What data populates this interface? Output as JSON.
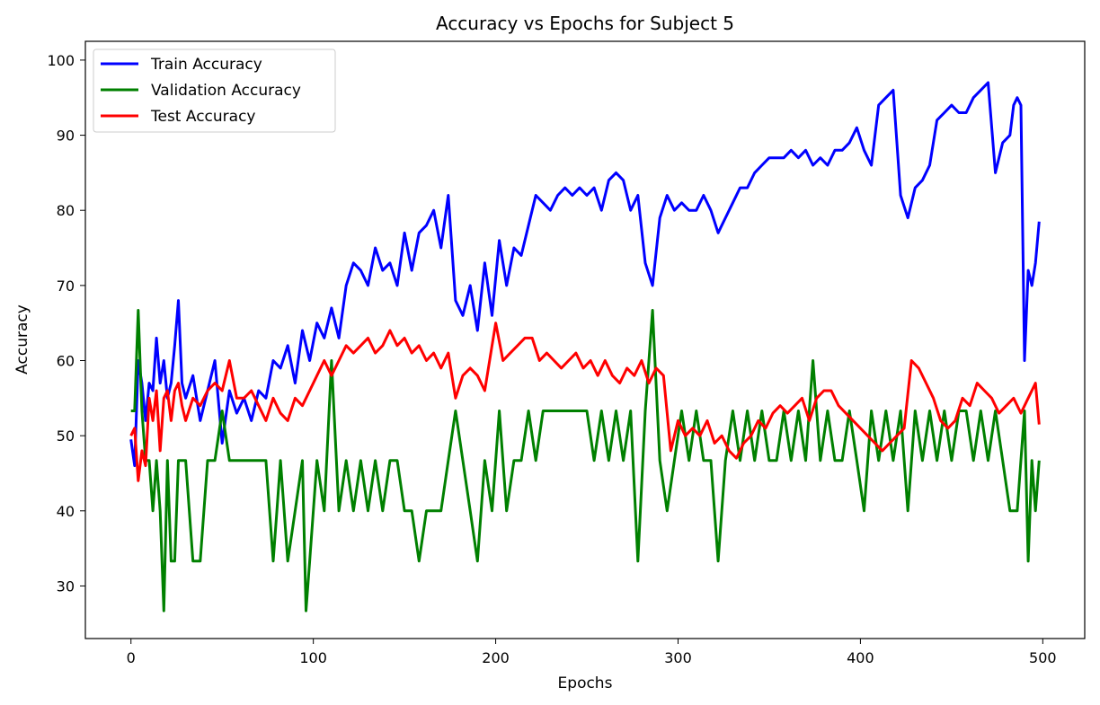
{
  "chart_data": {
    "type": "line",
    "title": "Accuracy vs Epochs for Subject 5",
    "xlabel": "Epochs",
    "ylabel": "Accuracy",
    "xlim": [
      -25,
      523
    ],
    "ylim": [
      23,
      102.5
    ],
    "xticks": [
      0,
      100,
      200,
      300,
      400,
      500
    ],
    "yticks": [
      30,
      40,
      50,
      60,
      70,
      80,
      90,
      100
    ],
    "grid": false,
    "legend_position": "top-left",
    "series": [
      {
        "name": "Train Accuracy",
        "color": "#0000ff",
        "x": [
          0,
          2,
          4,
          6,
          8,
          10,
          12,
          14,
          16,
          18,
          20,
          22,
          24,
          26,
          28,
          30,
          34,
          38,
          42,
          46,
          50,
          54,
          58,
          62,
          66,
          70,
          74,
          78,
          82,
          86,
          90,
          94,
          98,
          102,
          106,
          110,
          114,
          118,
          122,
          126,
          130,
          134,
          138,
          142,
          146,
          150,
          154,
          158,
          162,
          166,
          170,
          174,
          178,
          182,
          186,
          190,
          194,
          198,
          202,
          206,
          210,
          214,
          218,
          222,
          226,
          230,
          234,
          238,
          242,
          246,
          250,
          254,
          258,
          262,
          266,
          270,
          274,
          278,
          282,
          286,
          290,
          294,
          298,
          302,
          306,
          310,
          314,
          318,
          322,
          326,
          330,
          334,
          338,
          342,
          346,
          350,
          354,
          358,
          362,
          366,
          370,
          374,
          378,
          382,
          386,
          390,
          394,
          398,
          402,
          406,
          410,
          414,
          418,
          422,
          426,
          430,
          434,
          438,
          442,
          446,
          450,
          454,
          458,
          462,
          466,
          470,
          474,
          478,
          482,
          484,
          486,
          488,
          490,
          492,
          494,
          496,
          498
        ],
        "values": [
          49.5,
          46,
          60,
          57,
          52,
          57,
          56,
          63,
          57,
          60,
          55,
          57,
          62,
          68,
          57,
          55,
          58,
          52,
          56,
          60,
          49,
          56,
          53,
          55,
          52,
          56,
          55,
          60,
          59,
          62,
          57,
          64,
          60,
          65,
          63,
          67,
          63,
          70,
          73,
          72,
          70,
          75,
          72,
          73,
          70,
          77,
          72,
          77,
          78,
          80,
          75,
          82,
          68,
          66,
          70,
          64,
          73,
          66,
          76,
          70,
          75,
          74,
          78,
          82,
          81,
          80,
          82,
          83,
          82,
          83,
          82,
          83,
          80,
          84,
          85,
          84,
          80,
          82,
          73,
          70,
          79,
          82,
          80,
          81,
          80,
          80,
          82,
          80,
          77,
          79,
          81,
          83,
          83,
          85,
          86,
          87,
          87,
          87,
          88,
          87,
          88,
          86,
          87,
          86,
          88,
          88,
          89,
          91,
          88,
          86,
          94,
          95,
          96,
          82,
          79,
          83,
          84,
          86,
          92,
          93,
          94,
          93,
          93,
          95,
          96,
          97,
          85,
          89,
          90,
          94,
          95,
          94,
          60,
          72,
          70,
          73,
          78.5
        ]
      },
      {
        "name": "Validation Accuracy",
        "color": "#008000",
        "x": [
          0,
          2,
          4,
          6,
          8,
          10,
          12,
          14,
          16,
          18,
          20,
          22,
          24,
          26,
          30,
          34,
          38,
          42,
          46,
          50,
          54,
          58,
          62,
          66,
          70,
          74,
          78,
          80,
          82,
          86,
          90,
          94,
          96,
          98,
          102,
          106,
          110,
          114,
          118,
          122,
          126,
          130,
          134,
          138,
          142,
          146,
          150,
          154,
          158,
          162,
          166,
          170,
          174,
          178,
          182,
          186,
          190,
          194,
          198,
          202,
          206,
          210,
          214,
          218,
          222,
          226,
          230,
          234,
          238,
          242,
          246,
          250,
          254,
          258,
          262,
          266,
          270,
          274,
          278,
          282,
          286,
          290,
          294,
          298,
          302,
          306,
          310,
          314,
          318,
          322,
          326,
          330,
          334,
          338,
          342,
          346,
          350,
          354,
          358,
          362,
          366,
          370,
          374,
          378,
          382,
          386,
          390,
          394,
          398,
          402,
          406,
          410,
          414,
          418,
          422,
          426,
          430,
          434,
          438,
          442,
          446,
          450,
          454,
          458,
          462,
          466,
          470,
          474,
          478,
          482,
          486,
          490,
          492,
          494,
          496,
          498
        ],
        "values": [
          53.3,
          53.3,
          66.7,
          53.3,
          46.7,
          46.7,
          40,
          46.7,
          40,
          26.7,
          46.7,
          33.3,
          33.3,
          46.7,
          46.7,
          33.3,
          33.3,
          46.7,
          46.7,
          53.3,
          46.7,
          46.7,
          46.7,
          46.7,
          46.7,
          46.7,
          33.3,
          40,
          46.7,
          33.3,
          40,
          46.7,
          26.7,
          33.3,
          46.7,
          40,
          60,
          40,
          46.7,
          40,
          46.7,
          40,
          46.7,
          40,
          46.7,
          46.7,
          40,
          40,
          33.3,
          40,
          40,
          40,
          46.7,
          53.3,
          46.7,
          40,
          33.3,
          46.7,
          40,
          53.3,
          40,
          46.7,
          46.7,
          53.3,
          46.7,
          53.3,
          53.3,
          53.3,
          53.3,
          53.3,
          53.3,
          53.3,
          46.7,
          53.3,
          46.7,
          53.3,
          46.7,
          53.3,
          33.3,
          53.3,
          66.7,
          46.7,
          40,
          46.7,
          53.3,
          46.7,
          53.3,
          46.7,
          46.7,
          33.3,
          46.7,
          53.3,
          46.7,
          53.3,
          46.7,
          53.3,
          46.7,
          46.7,
          53.3,
          46.7,
          53.3,
          46.7,
          60,
          46.7,
          53.3,
          46.7,
          46.7,
          53.3,
          46.7,
          40,
          53.3,
          46.7,
          53.3,
          46.7,
          53.3,
          40,
          53.3,
          46.7,
          53.3,
          46.7,
          53.3,
          46.7,
          53.3,
          53.3,
          46.7,
          53.3,
          46.7,
          53.3,
          46.7,
          40,
          40,
          53.3,
          33.3,
          46.7,
          40,
          46.7
        ]
      },
      {
        "name": "Test Accuracy",
        "color": "#ff0000",
        "x": [
          0,
          2,
          4,
          6,
          8,
          10,
          12,
          14,
          16,
          18,
          20,
          22,
          24,
          26,
          28,
          30,
          34,
          38,
          42,
          46,
          50,
          54,
          58,
          62,
          66,
          70,
          74,
          78,
          82,
          86,
          90,
          94,
          98,
          102,
          106,
          110,
          114,
          118,
          122,
          126,
          130,
          134,
          138,
          142,
          146,
          150,
          154,
          158,
          162,
          166,
          170,
          174,
          178,
          182,
          186,
          190,
          194,
          198,
          200,
          204,
          208,
          212,
          216,
          220,
          224,
          228,
          232,
          236,
          240,
          244,
          248,
          252,
          256,
          260,
          264,
          268,
          272,
          276,
          280,
          284,
          288,
          292,
          296,
          300,
          304,
          308,
          312,
          316,
          320,
          324,
          328,
          332,
          336,
          340,
          344,
          348,
          352,
          356,
          360,
          364,
          368,
          372,
          376,
          380,
          384,
          388,
          392,
          396,
          400,
          404,
          408,
          412,
          416,
          420,
          424,
          428,
          432,
          436,
          440,
          444,
          448,
          452,
          456,
          460,
          464,
          468,
          472,
          476,
          480,
          484,
          488,
          492,
          496,
          498
        ],
        "values": [
          50,
          51,
          44,
          48,
          46,
          55,
          52,
          56,
          48,
          55,
          56,
          52,
          56,
          57,
          54,
          52,
          55,
          54,
          56,
          57,
          56,
          60,
          55,
          55,
          56,
          54,
          52,
          55,
          53,
          52,
          55,
          54,
          56,
          58,
          60,
          58,
          60,
          62,
          61,
          62,
          63,
          61,
          62,
          64,
          62,
          63,
          61,
          62,
          60,
          61,
          59,
          61,
          55,
          58,
          59,
          58,
          56,
          62,
          65,
          60,
          61,
          62,
          63,
          63,
          60,
          61,
          60,
          59,
          60,
          61,
          59,
          60,
          58,
          60,
          58,
          57,
          59,
          58,
          60,
          57,
          59,
          58,
          48,
          52,
          50,
          51,
          50,
          52,
          49,
          50,
          48,
          47,
          49,
          50,
          52,
          51,
          53,
          54,
          53,
          54,
          55,
          52,
          55,
          56,
          56,
          54,
          53,
          52,
          51,
          50,
          49,
          48,
          49,
          50,
          51,
          60,
          59,
          57,
          55,
          52,
          51,
          52,
          55,
          54,
          57,
          56,
          55,
          53,
          54,
          55,
          53,
          55,
          57,
          51.5
        ]
      }
    ]
  }
}
